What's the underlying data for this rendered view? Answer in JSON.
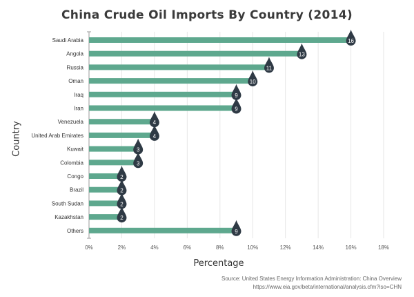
{
  "chart_data": {
    "type": "bar",
    "orientation": "horizontal",
    "title": "China Crude Oil Imports By Country (2014)",
    "xlabel": "Percentage",
    "ylabel": "Country",
    "categories": [
      "Saudi Arabia",
      "Angola",
      "Russia",
      "Oman",
      "Iraq",
      "Iran",
      "Venezuela",
      "United Arab Emirates",
      "Kuwait",
      "Colombia",
      "Congo",
      "Brazil",
      "South Sudan",
      "Kazakhstan",
      "Others"
    ],
    "values": [
      16,
      13,
      11,
      10,
      9,
      9,
      4,
      4,
      3,
      3,
      2,
      2,
      2,
      2,
      9
    ],
    "xlim": [
      0,
      18
    ],
    "xticks": [
      0,
      2,
      4,
      6,
      8,
      10,
      12,
      14,
      16,
      18
    ],
    "xtick_labels": [
      "0%",
      "2%",
      "4%",
      "6%",
      "8%",
      "10%",
      "12%",
      "14%",
      "16%",
      "18%"
    ],
    "grid": true,
    "data_label_style": "oil-drop badge at bar end",
    "colors": {
      "bar": "#5ea88e",
      "badge": "#2f3a45",
      "grid": "#e6e6e6",
      "axis": "#999999"
    }
  },
  "source": {
    "line1": "Source: United States Energy Information Administration: China Overview",
    "line2": "https://www.eia.gov/beta/international/analysis.cfm?iso=CHN"
  }
}
